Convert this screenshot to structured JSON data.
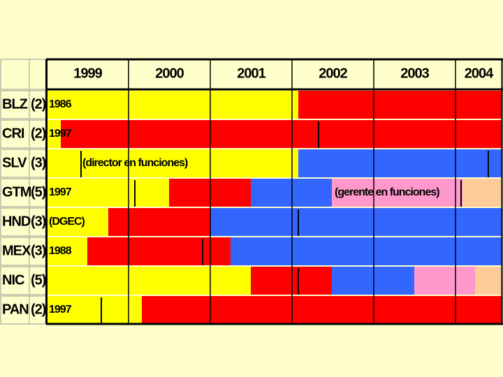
{
  "header": {
    "years": [
      "1999",
      "2000",
      "2001",
      "2002",
      "2003",
      "2004"
    ]
  },
  "rows": [
    {
      "code": "BLZ",
      "count": "(2)",
      "notes": [
        "1986"
      ]
    },
    {
      "code": "CRI",
      "count": "(2)",
      "notes": [
        "1997"
      ]
    },
    {
      "code": "SLV",
      "count": "(3)",
      "notes": [
        "(director en funciones)"
      ]
    },
    {
      "code": "GTM",
      "count": "(5)",
      "notes": [
        "1997",
        "(gerente en funciones)"
      ]
    },
    {
      "code": "HND",
      "count": "(3)",
      "notes": [
        "(DGEC)"
      ]
    },
    {
      "code": "MEX",
      "count": "(3)",
      "notes": [
        "1988"
      ]
    },
    {
      "code": "NIC",
      "count": "(5)",
      "notes": []
    },
    {
      "code": "PAN",
      "count": "(2)",
      "notes": [
        "1997"
      ]
    }
  ]
}
